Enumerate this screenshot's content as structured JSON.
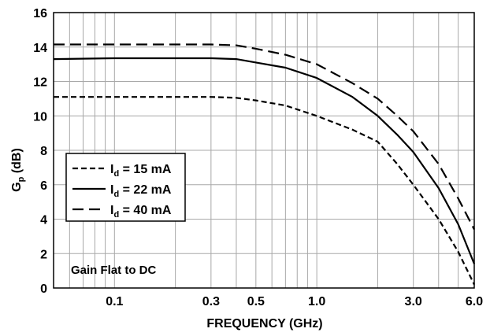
{
  "chart_data": {
    "type": "line",
    "title": "",
    "xlabel": "FREQUENCY (GHz)",
    "ylabel_main": "G",
    "ylabel_sub": "p",
    "ylabel_unit": " (dB)",
    "xscale": "log",
    "xlim": [
      0.05,
      6.0
    ],
    "ylim": [
      0,
      16
    ],
    "grid": true,
    "legend_position": "middle-left",
    "x_ticks": [
      {
        "value": 0.1,
        "label": "0.1"
      },
      {
        "value": 0.3,
        "label": "0.3"
      },
      {
        "value": 0.5,
        "label": "0.5"
      },
      {
        "value": 1.0,
        "label": "1.0"
      },
      {
        "value": 3.0,
        "label": "3.0"
      },
      {
        "value": 6.0,
        "label": "6.0"
      }
    ],
    "x_minor_grid": [
      0.06,
      0.07,
      0.08,
      0.09,
      0.2,
      0.4,
      0.6,
      0.7,
      0.8,
      0.9,
      2.0,
      4.0,
      5.0
    ],
    "y_ticks": [
      {
        "value": 0,
        "label": "0"
      },
      {
        "value": 2,
        "label": "2"
      },
      {
        "value": 4,
        "label": "4"
      },
      {
        "value": 6,
        "label": "6"
      },
      {
        "value": 8,
        "label": "8"
      },
      {
        "value": 10,
        "label": "10"
      },
      {
        "value": 12,
        "label": "12"
      },
      {
        "value": 14,
        "label": "14"
      },
      {
        "value": 16,
        "label": "16"
      }
    ],
    "series": [
      {
        "name_main": "I",
        "name_sub": "d",
        "name_rest": " = 15 mA",
        "style": "short-dash",
        "x": [
          0.05,
          0.1,
          0.2,
          0.3,
          0.4,
          0.5,
          0.7,
          1.0,
          1.5,
          2.0,
          2.5,
          3.0,
          4.0,
          5.0,
          6.0
        ],
        "y": [
          11.1,
          11.1,
          11.1,
          11.1,
          11.05,
          10.9,
          10.6,
          10.0,
          9.2,
          8.5,
          7.2,
          6.0,
          4.0,
          2.1,
          0.2
        ]
      },
      {
        "name_main": "I",
        "name_sub": "d",
        "name_rest": " = 22 mA",
        "style": "solid",
        "x": [
          0.05,
          0.1,
          0.2,
          0.3,
          0.4,
          0.5,
          0.7,
          1.0,
          1.5,
          2.0,
          2.5,
          3.0,
          4.0,
          5.0,
          6.0
        ],
        "y": [
          13.3,
          13.35,
          13.35,
          13.35,
          13.3,
          13.1,
          12.8,
          12.2,
          11.1,
          10.0,
          8.9,
          7.9,
          5.8,
          3.7,
          1.4
        ]
      },
      {
        "name_main": "I",
        "name_sub": "d",
        "name_rest": " = 40 mA",
        "style": "long-dash",
        "x": [
          0.05,
          0.1,
          0.2,
          0.3,
          0.4,
          0.5,
          0.7,
          1.0,
          1.5,
          2.0,
          2.5,
          3.0,
          4.0,
          5.0,
          6.0
        ],
        "y": [
          14.15,
          14.15,
          14.15,
          14.15,
          14.1,
          13.9,
          13.55,
          13.0,
          11.9,
          11.0,
          10.0,
          9.1,
          7.2,
          5.2,
          3.4
        ]
      }
    ],
    "annotation": "Gain Flat to DC"
  }
}
